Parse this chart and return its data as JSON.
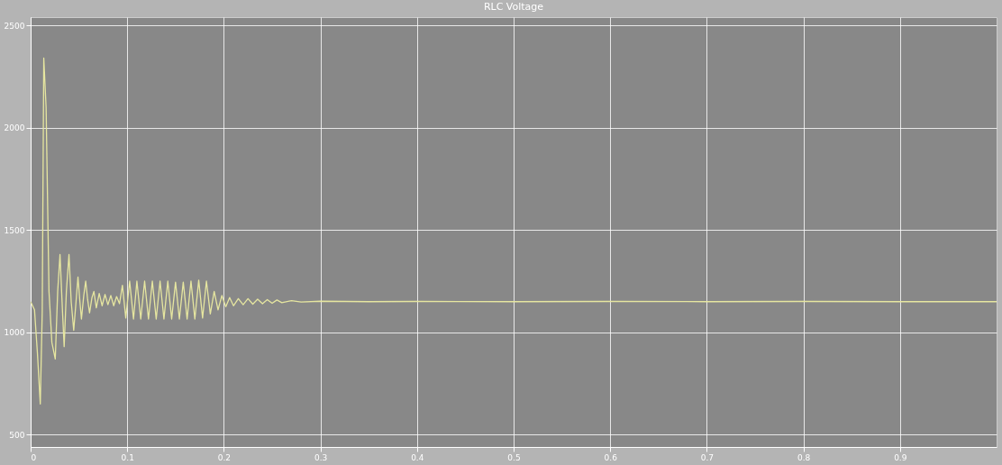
{
  "chart_data": {
    "type": "line",
    "title": "RLC Voltage",
    "x": [
      0,
      0.004,
      0.007,
      0.01,
      0.012,
      0.0136,
      0.016,
      0.019,
      0.022,
      0.0255,
      0.028,
      0.0304,
      0.033,
      0.0347,
      0.037,
      0.0397,
      0.042,
      0.0446,
      0.047,
      0.049,
      0.051,
      0.0526,
      0.055,
      0.057,
      0.059,
      0.061,
      0.0635,
      0.0655,
      0.068,
      0.071,
      0.074,
      0.077,
      0.08,
      0.083,
      0.086,
      0.089,
      0.092,
      0.095,
      0.0985,
      0.1025,
      0.1065,
      0.11,
      0.114,
      0.118,
      0.122,
      0.126,
      0.13,
      0.134,
      0.138,
      0.142,
      0.146,
      0.15,
      0.154,
      0.158,
      0.162,
      0.166,
      0.17,
      0.174,
      0.178,
      0.182,
      0.186,
      0.19,
      0.194,
      0.198,
      0.202,
      0.206,
      0.21,
      0.215,
      0.22,
      0.225,
      0.23,
      0.235,
      0.24,
      0.245,
      0.25,
      0.255,
      0.26,
      0.27,
      0.28,
      0.3,
      0.35,
      0.4,
      0.5,
      0.6,
      0.7,
      0.8,
      0.9,
      1.0
    ],
    "series": [
      {
        "color": "#e6e6a0",
        "values": [
          1150,
          1110,
          900,
          650,
          1100,
          2340,
          2100,
          1200,
          950,
          870,
          1200,
          1380,
          1100,
          930,
          1200,
          1380,
          1150,
          1010,
          1150,
          1270,
          1150,
          1065,
          1180,
          1250,
          1160,
          1095,
          1170,
          1200,
          1120,
          1190,
          1130,
          1185,
          1135,
          1180,
          1130,
          1175,
          1140,
          1230,
          1070,
          1250,
          1065,
          1250,
          1065,
          1250,
          1065,
          1250,
          1065,
          1250,
          1065,
          1250,
          1065,
          1245,
          1065,
          1245,
          1065,
          1250,
          1065,
          1255,
          1070,
          1250,
          1090,
          1200,
          1110,
          1180,
          1125,
          1170,
          1130,
          1165,
          1135,
          1165,
          1138,
          1162,
          1140,
          1160,
          1142,
          1158,
          1145,
          1155,
          1148,
          1152,
          1150,
          1151,
          1150,
          1151,
          1150,
          1151,
          1150,
          1150
        ]
      }
    ],
    "xlim": [
      0,
      1.0
    ],
    "ylim": [
      440,
      2540
    ],
    "xticks": [
      0,
      0.1,
      0.2,
      0.3,
      0.4,
      0.5,
      0.6,
      0.7,
      0.8,
      0.9
    ],
    "yticks": [
      500,
      1000,
      1500,
      2000,
      2500
    ],
    "grid": true,
    "marker": "none",
    "line_style": "solid"
  }
}
